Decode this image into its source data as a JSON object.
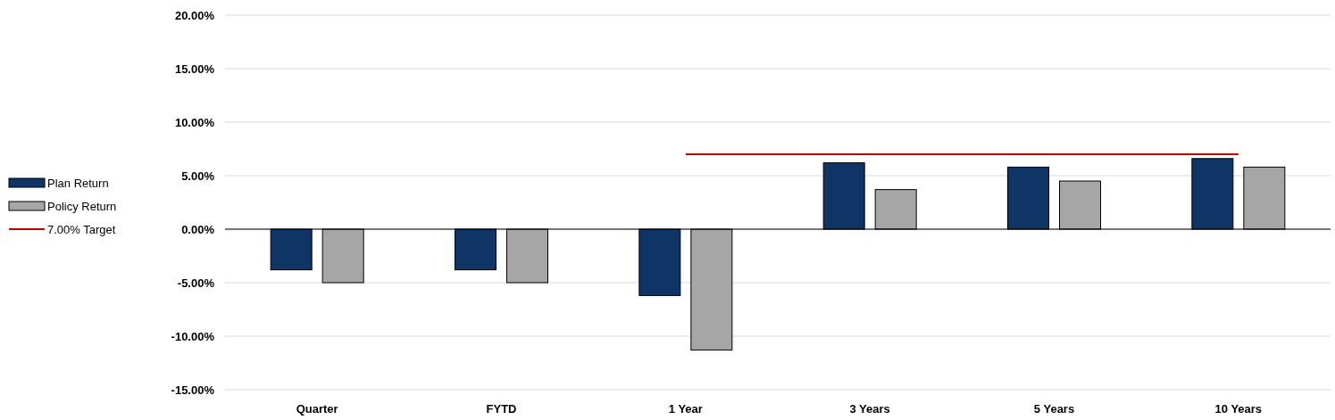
{
  "chart_data": {
    "type": "bar",
    "categories": [
      "Quarter",
      "FYTD",
      "1 Year",
      "3 Years",
      "5 Years",
      "10 Years"
    ],
    "series": [
      {
        "name": "Plan Return",
        "color": "#0f3466",
        "values": [
          -3.8,
          -3.8,
          -6.2,
          6.2,
          5.8,
          6.6
        ]
      },
      {
        "name": "Policy Return",
        "color": "#a6a6a6",
        "values": [
          -5.0,
          -5.0,
          -11.3,
          3.7,
          4.5,
          5.8
        ]
      },
      {
        "name": "7.00% Target",
        "type": "line",
        "color": "#c00000",
        "values": [
          null,
          null,
          7,
          7,
          7,
          7
        ]
      }
    ],
    "ylim": [
      -15,
      20
    ],
    "yticks": [
      {
        "value": -15,
        "label": "-15.00%"
      },
      {
        "value": -10,
        "label": "-10.00%"
      },
      {
        "value": -5,
        "label": "-5.00%"
      },
      {
        "value": 0,
        "label": "0.00%"
      },
      {
        "value": 5,
        "label": "5.00%"
      },
      {
        "value": 10,
        "label": "10.00%"
      },
      {
        "value": 15,
        "label": "15.00%"
      },
      {
        "value": 20,
        "label": "20.00%"
      }
    ],
    "grid": "y",
    "legend": "left"
  }
}
